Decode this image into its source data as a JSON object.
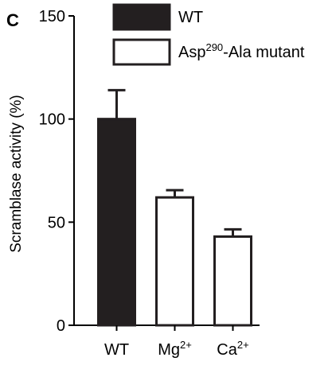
{
  "panel_label": "C",
  "chart_data": {
    "type": "bar",
    "ylabel": "Scramblase activity (%)",
    "ylim": [
      0,
      150
    ],
    "yticks": [
      0,
      50,
      100,
      150
    ],
    "categories": [
      {
        "base": "WT",
        "sup": ""
      },
      {
        "base": "Mg",
        "sup": "2+"
      },
      {
        "base": "Ca",
        "sup": "2+"
      }
    ],
    "values": [
      100,
      62,
      43
    ],
    "errors": [
      14,
      3.5,
      3.5
    ],
    "bar_series": [
      "WT",
      "Asp290-Ala mutant",
      "Asp290-Ala mutant"
    ],
    "legend": [
      {
        "name": "WT",
        "fill": "#231f20",
        "base": "WT",
        "sup": "",
        "tail": ""
      },
      {
        "name": "Asp290-Ala mutant",
        "fill": "#ffffff",
        "base": "Asp",
        "sup": "290",
        "tail": "-Ala mutant"
      }
    ],
    "legend_position": "top-right",
    "grid": false
  },
  "colors": {
    "wt_fill": "#231f20",
    "mutant_fill": "#ffffff",
    "stroke": "#231f20"
  }
}
